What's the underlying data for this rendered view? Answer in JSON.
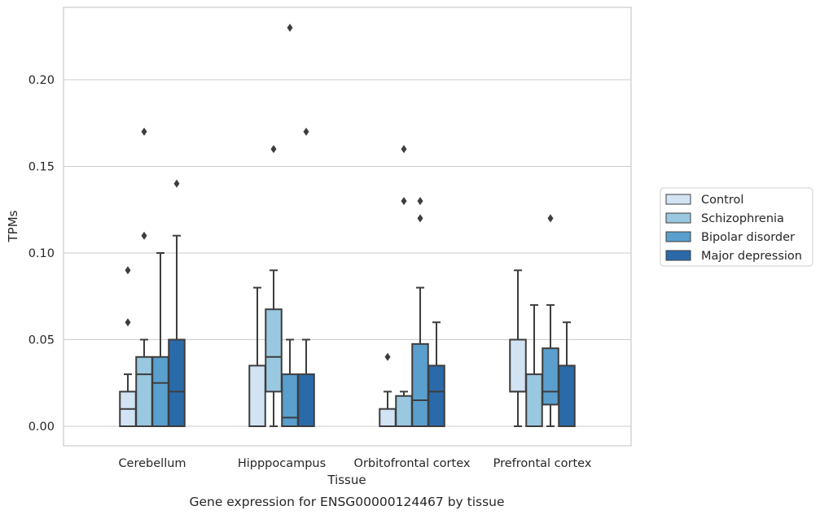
{
  "chart_data": {
    "type": "boxplot",
    "caption": "Gene expression for ENSG00000124467 by tissue",
    "xlabel": "Tissue",
    "ylabel": "TPMs",
    "ylim": [
      -0.011,
      0.242
    ],
    "yticks": [
      0.0,
      0.05,
      0.1,
      0.15,
      0.2
    ],
    "ytick_labels": [
      "0.00",
      "0.05",
      "0.10",
      "0.15",
      "0.20"
    ],
    "grid": "horizontal",
    "legend_position": "right-outside",
    "categories": [
      "Cerebellum",
      "Hipppocampus",
      "Orbitofrontal cortex",
      "Prefrontal cortex"
    ],
    "series": [
      {
        "name": "Control",
        "color": "#d2e3f3",
        "boxes": [
          {
            "whislo": 0.0,
            "q1": 0.0,
            "med": 0.01,
            "q3": 0.02,
            "whishi": 0.03,
            "fliers": [
              0.06,
              0.09
            ]
          },
          {
            "whislo": 0.0,
            "q1": 0.0,
            "med": 0.0,
            "q3": 0.035,
            "whishi": 0.08,
            "fliers": []
          },
          {
            "whislo": 0.0,
            "q1": 0.0,
            "med": 0.0,
            "q3": 0.01,
            "whishi": 0.02,
            "fliers": [
              0.04
            ]
          },
          {
            "whislo": 0.0,
            "q1": 0.02,
            "med": 0.02,
            "q3": 0.05,
            "whishi": 0.09,
            "fliers": []
          }
        ]
      },
      {
        "name": "Schizophrenia",
        "color": "#9ac8e0",
        "boxes": [
          {
            "whislo": 0.0,
            "q1": 0.0,
            "med": 0.03,
            "q3": 0.04,
            "whishi": 0.05,
            "fliers": [
              0.11,
              0.17
            ]
          },
          {
            "whislo": 0.0,
            "q1": 0.02,
            "med": 0.04,
            "q3": 0.0675,
            "whishi": 0.09,
            "fliers": [
              0.16
            ]
          },
          {
            "whislo": 0.0,
            "q1": 0.0,
            "med": 0.0,
            "q3": 0.0175,
            "whishi": 0.02,
            "fliers": [
              0.13,
              0.16
            ]
          },
          {
            "whislo": 0.0,
            "q1": 0.0,
            "med": 0.0,
            "q3": 0.03,
            "whishi": 0.07,
            "fliers": []
          }
        ]
      },
      {
        "name": "Bipolar disorder",
        "color": "#5a9fcd",
        "boxes": [
          {
            "whislo": 0.0,
            "q1": 0.0,
            "med": 0.025,
            "q3": 0.04,
            "whishi": 0.1,
            "fliers": []
          },
          {
            "whislo": 0.0,
            "q1": 0.0,
            "med": 0.005,
            "q3": 0.03,
            "whishi": 0.05,
            "fliers": [
              0.23
            ]
          },
          {
            "whislo": 0.0,
            "q1": 0.0,
            "med": 0.015,
            "q3": 0.0475,
            "whishi": 0.08,
            "fliers": [
              0.12,
              0.13
            ]
          },
          {
            "whislo": 0.0,
            "q1": 0.0125,
            "med": 0.02,
            "q3": 0.045,
            "whishi": 0.07,
            "fliers": [
              0.12
            ]
          }
        ]
      },
      {
        "name": "Major depression",
        "color": "#2b6aa9",
        "boxes": [
          {
            "whislo": 0.0,
            "q1": 0.0,
            "med": 0.02,
            "q3": 0.05,
            "whishi": 0.11,
            "fliers": [
              0.14
            ]
          },
          {
            "whislo": 0.0,
            "q1": 0.0,
            "med": 0.0,
            "q3": 0.03,
            "whishi": 0.05,
            "fliers": [
              0.17
            ]
          },
          {
            "whislo": 0.0,
            "q1": 0.0,
            "med": 0.02,
            "q3": 0.035,
            "whishi": 0.06,
            "fliers": []
          },
          {
            "whislo": 0.0,
            "q1": 0.0,
            "med": 0.0,
            "q3": 0.035,
            "whishi": 0.06,
            "fliers": []
          }
        ]
      }
    ]
  }
}
